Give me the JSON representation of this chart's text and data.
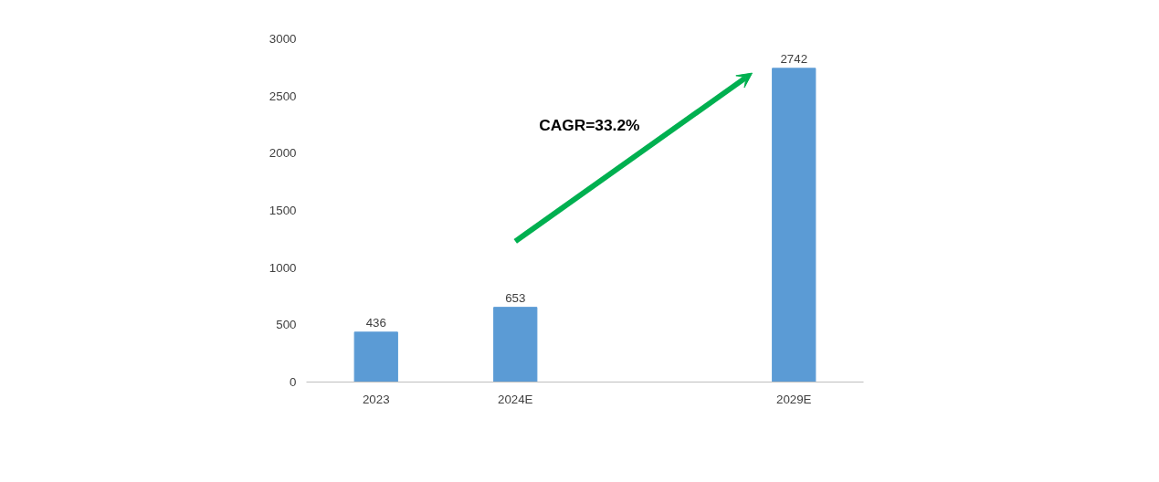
{
  "chart_data": {
    "type": "bar",
    "categories": [
      "2023",
      "2024E",
      null,
      "2029E"
    ],
    "values": [
      436,
      653,
      null,
      2742
    ],
    "color": "#5b9bd5",
    "data_labels": true,
    "ylim": [
      0,
      3000
    ],
    "yticks": [
      0,
      500,
      1000,
      1500,
      2000,
      2500,
      3000
    ],
    "grid": false,
    "annotations": [
      "CAGR=33.2%"
    ]
  }
}
